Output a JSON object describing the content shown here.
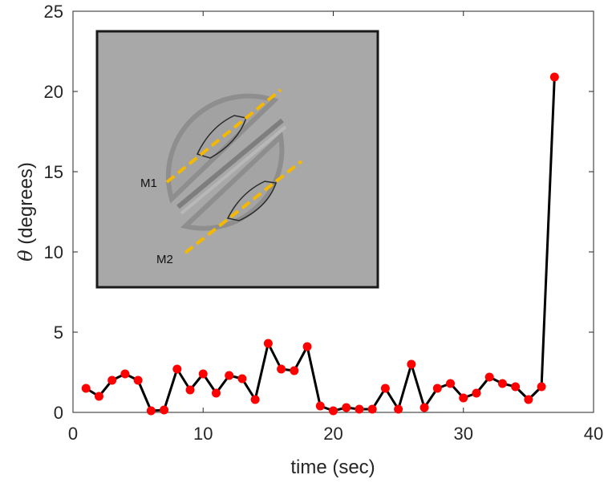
{
  "chart_data": {
    "type": "line",
    "xlabel": "time (sec)",
    "ylabel_symbol": "θ",
    "ylabel_text": " (degrees)",
    "xlim": [
      0,
      40
    ],
    "ylim": [
      0,
      25
    ],
    "x_ticks": [
      0,
      10,
      20,
      30,
      40
    ],
    "y_ticks": [
      0,
      5,
      10,
      15,
      20,
      25
    ],
    "grid": false,
    "series": [
      {
        "x": [
          1,
          2,
          3,
          4,
          5,
          6,
          7,
          8,
          9,
          10,
          11,
          12,
          13,
          14,
          15,
          16,
          17,
          18,
          19,
          20,
          21,
          22,
          23,
          24,
          25,
          26,
          27,
          28,
          29,
          30,
          31,
          32,
          33,
          34,
          35,
          36,
          37
        ],
        "values": [
          1.5,
          1.0,
          2.0,
          2.4,
          2.0,
          0.1,
          0.15,
          2.7,
          1.4,
          2.4,
          1.2,
          2.3,
          2.1,
          0.8,
          4.3,
          2.7,
          2.6,
          4.1,
          0.4,
          0.1,
          0.3,
          0.2,
          0.2,
          1.5,
          0.2,
          3.0,
          0.3,
          1.5,
          1.8,
          0.9,
          1.2,
          2.2,
          1.8,
          1.6,
          0.8,
          1.6,
          20.9
        ]
      }
    ],
    "colors": {
      "line": "#000000",
      "marker": "#ff0000",
      "axis": "#262626"
    },
    "inset": {
      "labels": [
        "M1",
        "M2"
      ],
      "line_color": "#f5b800",
      "background": "#a6a6a6"
    }
  }
}
